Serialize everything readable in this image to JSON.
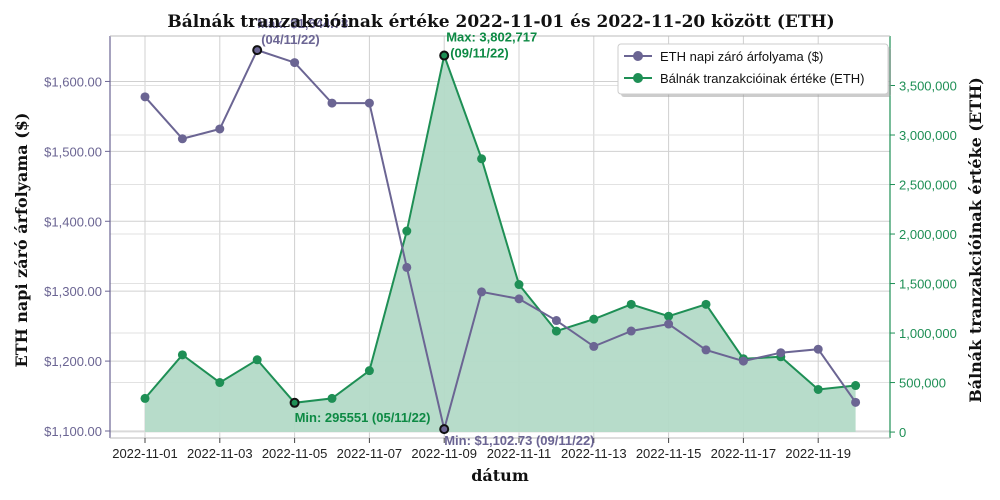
{
  "chart_data": {
    "type": "line",
    "title": "Bálnák tranzakcióinak értéke 2022-11-01 és 2022-11-20 között (ETH)",
    "xlabel": "dátum",
    "ylabel_left": "ETH napi záró árfolyama ($)",
    "ylabel_right": "Bálnák tranzakcióinak értéke (ETH)",
    "x": [
      "2022-11-01",
      "2022-11-02",
      "2022-11-03",
      "2022-11-04",
      "2022-11-05",
      "2022-11-06",
      "2022-11-07",
      "2022-11-08",
      "2022-11-09",
      "2022-11-10",
      "2022-11-11",
      "2022-11-12",
      "2022-11-13",
      "2022-11-14",
      "2022-11-15",
      "2022-11-16",
      "2022-11-17",
      "2022-11-18",
      "2022-11-19",
      "2022-11-20"
    ],
    "x_tick_labels": [
      "2022-11-01",
      "2022-11-03",
      "2022-11-05",
      "2022-11-07",
      "2022-11-09",
      "2022-11-11",
      "2022-11-13",
      "2022-11-15",
      "2022-11-17",
      "2022-11-19"
    ],
    "ylim_left": [
      1090,
      1665
    ],
    "ylim_right": [
      -60000,
      4000000
    ],
    "y_ticks_left": [
      "$1,100.00",
      "$1,200.00",
      "$1,300.00",
      "$1,400.00",
      "$1,500.00",
      "$1,600.00"
    ],
    "y_tick_values_left": [
      1100,
      1200,
      1300,
      1400,
      1500,
      1600
    ],
    "y_ticks_right": [
      "0",
      "500,000",
      "1,000,000",
      "1,500,000",
      "2,000,000",
      "2,500,000",
      "3,000,000",
      "3,500,000"
    ],
    "y_tick_values_right": [
      0,
      500000,
      1000000,
      1500000,
      2000000,
      2500000,
      3000000,
      3500000
    ],
    "grid": true,
    "legend_position": "top-right",
    "series": [
      {
        "name": "ETH napi záró árfolyama ($)",
        "axis": "left",
        "color": "#6b6593",
        "values": [
          1578,
          1518,
          1532,
          1644.78,
          1627,
          1569,
          1569,
          1334,
          1102.73,
          1299,
          1289,
          1258,
          1221,
          1243,
          1253,
          1216,
          1200,
          1212,
          1217,
          1141
        ]
      },
      {
        "name": "Bálnák tranzakcióinak értéke (ETH)",
        "axis": "right",
        "color": "#1e8f55",
        "fill": "#b3dac7",
        "values": [
          340000,
          780000,
          500000,
          730000,
          295551,
          340000,
          620000,
          2030000,
          3802717,
          2760000,
          1490000,
          1020000,
          1140000,
          1290000,
          1170000,
          1290000,
          740000,
          760000,
          430000,
          470000
        ]
      }
    ],
    "annotations": [
      {
        "label": "Max: $1,644.78",
        "date": "(04/11/22)",
        "series": 0,
        "index": 3,
        "color": "#6b6593"
      },
      {
        "label": "Min: $1,102.73 (09/11/22)",
        "series": 0,
        "index": 8,
        "color": "#6b6593"
      },
      {
        "label": "Max: 3,802,717",
        "date": "(09/11/22)",
        "series": 1,
        "index": 8,
        "color": "#0d8a44"
      },
      {
        "label": "Min: 295551 (05/11/22)",
        "series": 1,
        "index": 4,
        "color": "#0d8a44"
      }
    ],
    "colors": {
      "left_axis": "#6b6593",
      "right_axis": "#1e8f55",
      "grid": "#d0d0d0"
    }
  }
}
